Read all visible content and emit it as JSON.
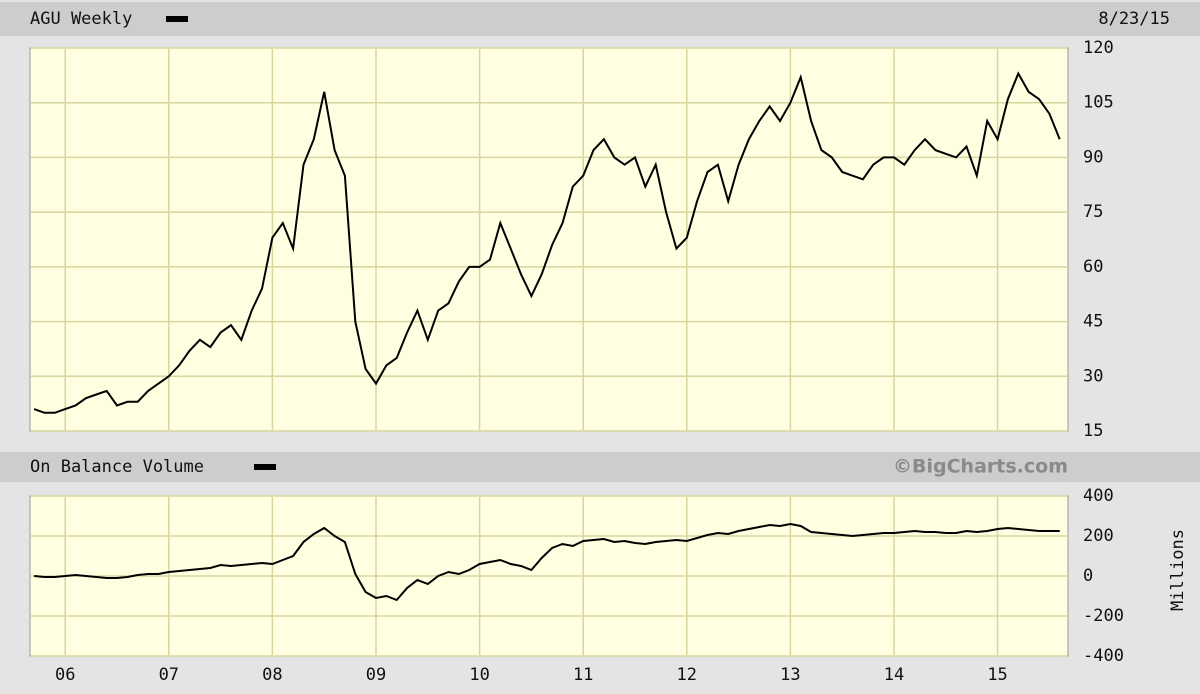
{
  "chart_data": [
    {
      "type": "line",
      "series": [
        {
          "name": "AGU Weekly",
          "color": "#000000",
          "values": [
            21,
            20,
            20,
            21,
            22,
            24,
            25,
            26,
            22,
            23,
            23,
            26,
            28,
            30,
            33,
            37,
            40,
            38,
            42,
            44,
            40,
            48,
            54,
            68,
            72,
            65,
            88,
            95,
            108,
            92,
            85,
            45,
            32,
            28,
            33,
            35,
            42,
            48,
            40,
            48,
            50,
            56,
            60,
            60,
            62,
            72,
            65,
            58,
            52,
            58,
            66,
            72,
            82,
            85,
            92,
            95,
            90,
            88,
            90,
            82,
            88,
            75,
            65,
            68,
            78,
            86,
            88,
            78,
            88,
            95,
            100,
            104,
            100,
            105,
            112,
            100,
            92,
            90,
            86,
            85,
            84,
            88,
            90,
            90,
            88,
            92,
            95,
            92,
            91,
            90,
            93,
            85,
            100,
            95,
            106,
            113,
            108,
            106,
            102,
            95
          ]
        }
      ],
      "x": [
        2005.7,
        2005.8,
        2005.9,
        2006.0,
        2006.1,
        2006.2,
        2006.3,
        2006.4,
        2006.5,
        2006.6,
        2006.7,
        2006.8,
        2006.9,
        2007.0,
        2007.1,
        2007.2,
        2007.3,
        2007.4,
        2007.5,
        2007.6,
        2007.7,
        2007.8,
        2007.9,
        2008.0,
        2008.1,
        2008.2,
        2008.3,
        2008.4,
        2008.5,
        2008.6,
        2008.7,
        2008.8,
        2008.9,
        2009.0,
        2009.1,
        2009.2,
        2009.3,
        2009.4,
        2009.5,
        2009.6,
        2009.7,
        2009.8,
        2009.9,
        2010.0,
        2010.1,
        2010.2,
        2010.3,
        2010.4,
        2010.5,
        2010.6,
        2010.7,
        2010.8,
        2010.9,
        2011.0,
        2011.1,
        2011.2,
        2011.3,
        2011.4,
        2011.5,
        2011.6,
        2011.7,
        2011.8,
        2011.9,
        2012.0,
        2012.1,
        2012.2,
        2012.3,
        2012.4,
        2012.5,
        2012.6,
        2012.7,
        2012.8,
        2012.9,
        2013.0,
        2013.1,
        2013.2,
        2013.3,
        2013.4,
        2013.5,
        2013.6,
        2013.7,
        2013.8,
        2013.9,
        2014.0,
        2014.1,
        2014.2,
        2014.3,
        2014.4,
        2014.5,
        2014.6,
        2014.7,
        2014.8,
        2014.9,
        2015.0,
        2015.1,
        2015.2,
        2015.3,
        2015.4,
        2015.5,
        2015.6
      ],
      "xlim": [
        2005.66,
        2015.68
      ],
      "xticks": [
        2006,
        2007,
        2008,
        2009,
        2010,
        2011,
        2012,
        2013,
        2014,
        2015
      ],
      "ylim": [
        15,
        120
      ],
      "yticks": [
        15,
        30,
        45,
        60,
        75,
        90,
        105,
        120
      ],
      "grid": true,
      "annotation": "8/23/15"
    },
    {
      "type": "line",
      "series": [
        {
          "name": "On Balance Volume",
          "color": "#000000",
          "values": [
            0,
            -5,
            -5,
            0,
            5,
            0,
            -5,
            -10,
            -10,
            -5,
            5,
            10,
            10,
            20,
            25,
            30,
            35,
            40,
            55,
            50,
            55,
            60,
            65,
            60,
            80,
            100,
            170,
            210,
            240,
            200,
            170,
            10,
            -80,
            -110,
            -100,
            -120,
            -60,
            -20,
            -40,
            0,
            20,
            10,
            30,
            60,
            70,
            80,
            60,
            50,
            30,
            90,
            140,
            160,
            150,
            175,
            180,
            185,
            170,
            175,
            165,
            160,
            170,
            175,
            180,
            175,
            190,
            205,
            215,
            210,
            225,
            235,
            245,
            255,
            250,
            260,
            250,
            220,
            215,
            210,
            205,
            200,
            205,
            210,
            215,
            215,
            220,
            225,
            220,
            220,
            215,
            215,
            225,
            220,
            225,
            235,
            240,
            235,
            230,
            225,
            225,
            225
          ]
        }
      ],
      "x": [
        2005.7,
        2005.8,
        2005.9,
        2006.0,
        2006.1,
        2006.2,
        2006.3,
        2006.4,
        2006.5,
        2006.6,
        2006.7,
        2006.8,
        2006.9,
        2007.0,
        2007.1,
        2007.2,
        2007.3,
        2007.4,
        2007.5,
        2007.6,
        2007.7,
        2007.8,
        2007.9,
        2008.0,
        2008.1,
        2008.2,
        2008.3,
        2008.4,
        2008.5,
        2008.6,
        2008.7,
        2008.8,
        2008.9,
        2009.0,
        2009.1,
        2009.2,
        2009.3,
        2009.4,
        2009.5,
        2009.6,
        2009.7,
        2009.8,
        2009.9,
        2010.0,
        2010.1,
        2010.2,
        2010.3,
        2010.4,
        2010.5,
        2010.6,
        2010.7,
        2010.8,
        2010.9,
        2011.0,
        2011.1,
        2011.2,
        2011.3,
        2011.4,
        2011.5,
        2011.6,
        2011.7,
        2011.8,
        2011.9,
        2012.0,
        2012.1,
        2012.2,
        2012.3,
        2012.4,
        2012.5,
        2012.6,
        2012.7,
        2012.8,
        2012.9,
        2013.0,
        2013.1,
        2013.2,
        2013.3,
        2013.4,
        2013.5,
        2013.6,
        2013.7,
        2013.8,
        2013.9,
        2014.0,
        2014.1,
        2014.2,
        2014.3,
        2014.4,
        2014.5,
        2014.6,
        2014.7,
        2014.8,
        2014.9,
        2015.0,
        2015.1,
        2015.2,
        2015.3,
        2015.4,
        2015.5,
        2015.6
      ],
      "xlim": [
        2005.66,
        2015.68
      ],
      "xticks": [
        {
          "value": 2006,
          "label": "06"
        },
        {
          "value": 2007,
          "label": "07"
        },
        {
          "value": 2008,
          "label": "08"
        },
        {
          "value": 2009,
          "label": "09"
        },
        {
          "value": 2010,
          "label": "10"
        },
        {
          "value": 2011,
          "label": "11"
        },
        {
          "value": 2012,
          "label": "12"
        },
        {
          "value": 2013,
          "label": "13"
        },
        {
          "value": 2014,
          "label": "14"
        },
        {
          "value": 2015,
          "label": "15"
        }
      ],
      "ylim": [
        -400,
        400
      ],
      "yticks": [
        -400,
        -200,
        0,
        200,
        400
      ],
      "ylabel": "Millions",
      "grid": true,
      "annotation": "©BigCharts.com"
    }
  ]
}
